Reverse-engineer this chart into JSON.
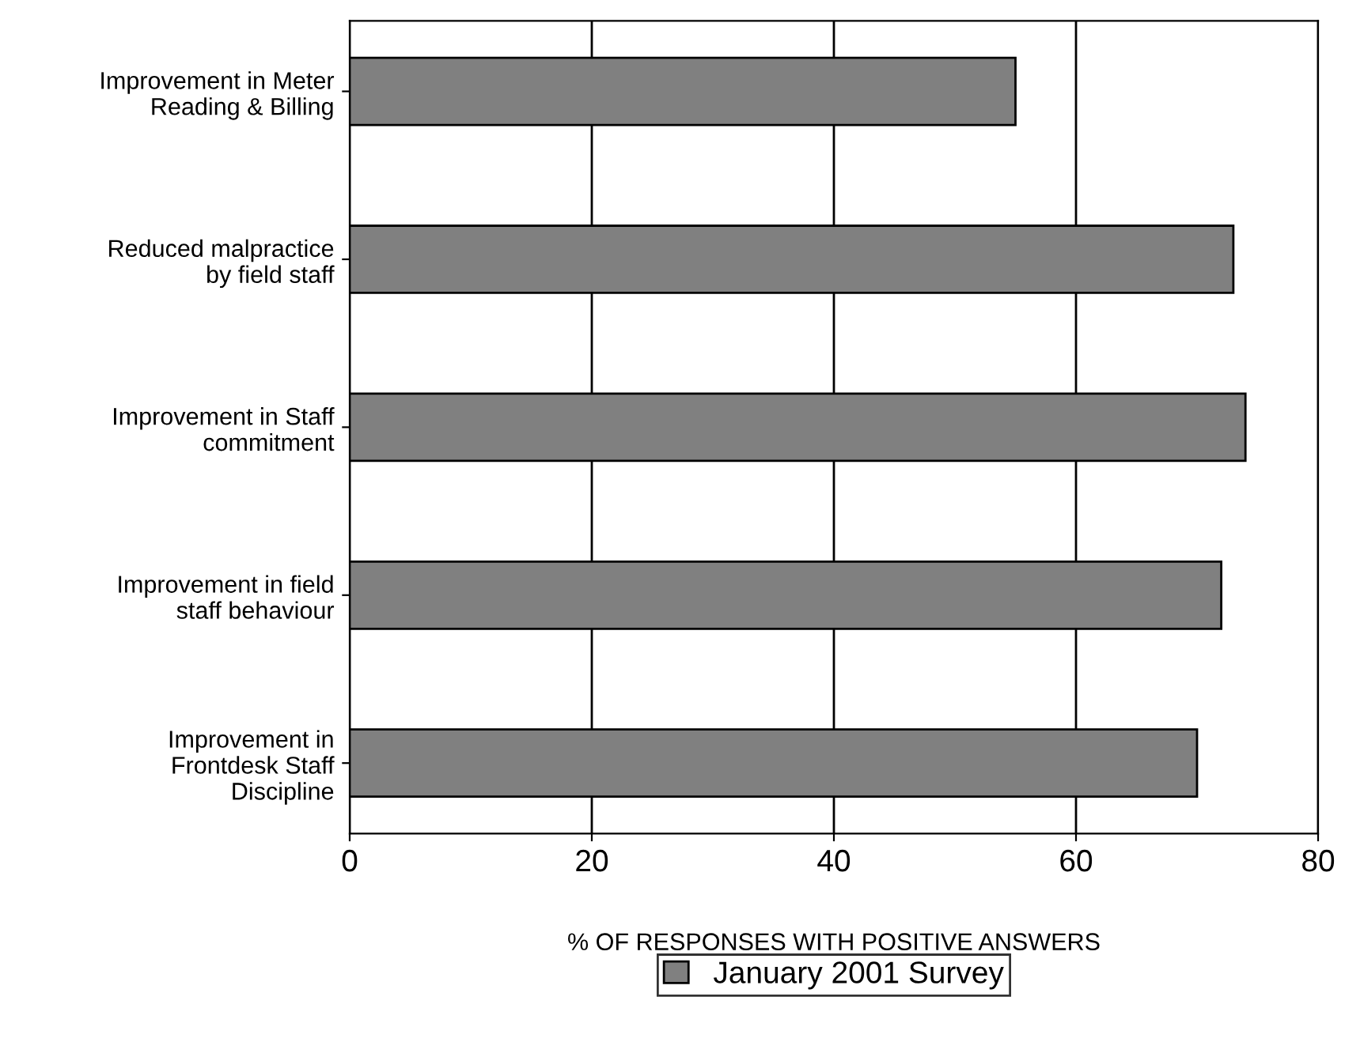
{
  "chart_data": {
    "type": "bar",
    "orientation": "horizontal",
    "categories": [
      "Improvement in Meter\nReading & Billing",
      "Reduced malpractice\nby field staff",
      "Improvement in Staff\ncommitment",
      "Improvement in field\nstaff behaviour",
      "Improvement in\nFrontdesk Staff\nDiscipline"
    ],
    "series": [
      {
        "name": "January 2001 Survey",
        "color": "#808080",
        "values": [
          55,
          73,
          74,
          72,
          70
        ]
      }
    ],
    "xlabel": "% OF RESPONSES WITH POSITIVE ANSWERS",
    "xlim": [
      0,
      80
    ],
    "xticks": [
      0,
      20,
      40,
      60,
      80
    ],
    "grid": "x",
    "legend": "bottom"
  }
}
